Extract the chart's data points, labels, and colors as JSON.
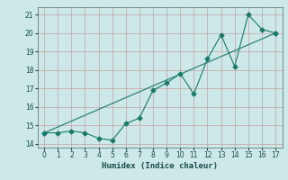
{
  "xlabel": "Humidex (Indice chaleur)",
  "background_color": "#cce8e8",
  "grid_color": "#b0c8c8",
  "line_color": "#1a7a6a",
  "line1_x": [
    0,
    1,
    2,
    3,
    4,
    5,
    6,
    7,
    8,
    9,
    10,
    11,
    12,
    13,
    14,
    15,
    16,
    17
  ],
  "line1_y": [
    14.6,
    14.6,
    14.7,
    14.6,
    14.3,
    14.2,
    15.1,
    15.4,
    16.9,
    17.3,
    17.8,
    16.7,
    18.6,
    19.9,
    18.2,
    21.0,
    20.2,
    20.0
  ],
  "line2_x": [
    0,
    17
  ],
  "line2_y": [
    14.6,
    20.0
  ],
  "xlim": [
    -0.5,
    17.5
  ],
  "ylim": [
    13.8,
    21.4
  ],
  "xticks": [
    0,
    1,
    2,
    3,
    4,
    5,
    6,
    7,
    8,
    9,
    10,
    11,
    12,
    13,
    14,
    15,
    16,
    17
  ],
  "yticks": [
    14,
    15,
    16,
    17,
    18,
    19,
    20,
    21
  ],
  "tick_fontsize": 5.5,
  "xlabel_fontsize": 6.5,
  "marker_size": 2.5
}
